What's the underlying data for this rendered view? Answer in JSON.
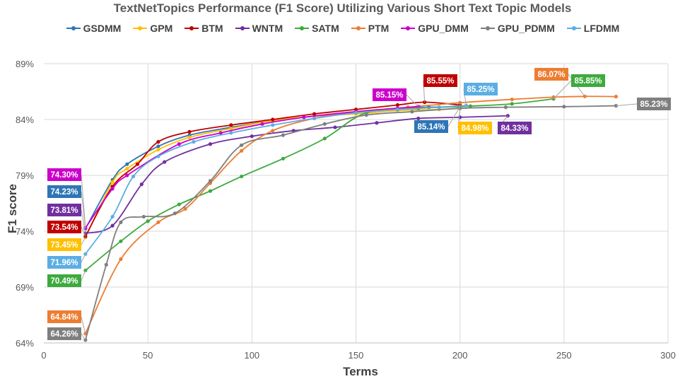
{
  "chart_data": {
    "type": "line",
    "title": "TextNetTopics Performance (F1 Score) Utilizing Various Short Text Topic Models",
    "xlabel": "Terms",
    "ylabel": "F1 score",
    "xlim": [
      0,
      300
    ],
    "ylim": [
      64,
      89
    ],
    "xticks": [
      0,
      50,
      100,
      150,
      200,
      250,
      300
    ],
    "yticks": [
      64,
      69,
      74,
      79,
      84,
      89
    ],
    "ytick_labels": [
      "64%",
      "69%",
      "74%",
      "79%",
      "84%",
      "89%"
    ],
    "grid": true,
    "legend_position": "top",
    "series": [
      {
        "name": "GSDMM",
        "color": "#2E75B6",
        "x": [
          20,
          33,
          40,
          55,
          70,
          90,
          110,
          130,
          150,
          170,
          185,
          200
        ],
        "y": [
          74.23,
          78.6,
          80.0,
          81.6,
          82.6,
          83.3,
          83.9,
          84.3,
          84.7,
          85.0,
          85.1,
          85.14
        ],
        "label": "74.23%",
        "end_label": "85.14%"
      },
      {
        "name": "GPM",
        "color": "#FFC000",
        "x": [
          20,
          33,
          40,
          55,
          70,
          90,
          110,
          130,
          150,
          170,
          190,
          200
        ],
        "y": [
          73.45,
          78.4,
          79.6,
          81.3,
          82.4,
          83.2,
          83.9,
          84.3,
          84.5,
          84.8,
          84.9,
          84.98
        ],
        "label": "73.45%",
        "end_label": "84.98%"
      },
      {
        "name": "BTM",
        "color": "#C00000",
        "x": [
          20,
          33,
          45,
          55,
          70,
          90,
          110,
          130,
          150,
          170,
          183,
          200
        ],
        "y": [
          73.54,
          78.0,
          80.0,
          82.0,
          82.9,
          83.5,
          84.0,
          84.5,
          84.9,
          85.3,
          85.55,
          85.3
        ],
        "label": "73.54%",
        "end_label": "85.55%"
      },
      {
        "name": "WNTM",
        "color": "#7030A0",
        "x": [
          20,
          33,
          47,
          58,
          80,
          100,
          120,
          140,
          160,
          180,
          200,
          223
        ],
        "y": [
          73.81,
          74.5,
          78.2,
          80.2,
          81.8,
          82.5,
          83.0,
          83.3,
          83.7,
          84.1,
          84.2,
          84.33
        ],
        "label": "73.81%",
        "end_label": "84.33%"
      },
      {
        "name": "SATM",
        "color": "#3DAA3D",
        "x": [
          20,
          37,
          50,
          65,
          80,
          95,
          115,
          135,
          155,
          180,
          205,
          225,
          245
        ],
        "y": [
          70.49,
          73.1,
          74.9,
          76.4,
          77.6,
          78.9,
          80.5,
          82.3,
          84.6,
          85.0,
          85.2,
          85.4,
          85.85
        ],
        "label": "70.49%",
        "end_label": "85.85%"
      },
      {
        "name": "PTM",
        "color": "#ED7D31",
        "x": [
          20,
          37,
          55,
          68,
          80,
          95,
          110,
          130,
          150,
          175,
          200,
          225,
          245,
          260,
          275
        ],
        "y": [
          64.84,
          71.5,
          74.8,
          76.0,
          78.3,
          81.2,
          83.0,
          84.1,
          84.7,
          85.1,
          85.5,
          85.8,
          86.0,
          86.07,
          86.05
        ],
        "label": "64.84%",
        "end_label": "86.07%"
      },
      {
        "name": "GPU_DMM",
        "color": "#CC00CC",
        "x": [
          20,
          33,
          40,
          65,
          85,
          105,
          125,
          150,
          170,
          180
        ],
        "y": [
          74.3,
          77.8,
          79.0,
          81.8,
          82.8,
          83.6,
          84.2,
          84.7,
          85.0,
          85.15
        ],
        "label": "74.30%",
        "end_label": "85.15%"
      },
      {
        "name": "GPU_PDMM",
        "color": "#7F7F7F",
        "x": [
          20,
          30,
          37,
          48,
          63,
          80,
          95,
          115,
          135,
          155,
          177,
          200,
          222,
          250,
          275
        ],
        "y": [
          64.26,
          71.0,
          74.8,
          75.3,
          75.6,
          78.5,
          81.7,
          82.6,
          83.6,
          84.4,
          84.7,
          85.0,
          85.1,
          85.15,
          85.23
        ],
        "label": "64.26%",
        "end_label": "85.23%"
      },
      {
        "name": "LFDMM",
        "color": "#5BAEE3",
        "x": [
          20,
          33,
          43,
          55,
          72,
          90,
          110,
          130,
          150,
          170,
          190,
          203
        ],
        "y": [
          71.96,
          75.3,
          78.9,
          80.7,
          82.0,
          82.8,
          83.5,
          84.1,
          84.6,
          84.9,
          85.1,
          85.25
        ],
        "label": "71.96%",
        "end_label": "85.25%"
      }
    ],
    "callouts_left": [
      {
        "series": "GPU_DMM",
        "text": "74.30%"
      },
      {
        "series": "GSDMM",
        "text": "74.23%"
      },
      {
        "series": "WNTM",
        "text": "73.81%"
      },
      {
        "series": "BTM",
        "text": "73.54%"
      },
      {
        "series": "GPM",
        "text": "73.45%"
      },
      {
        "series": "LFDMM",
        "text": "71.96%"
      },
      {
        "series": "SATM",
        "text": "70.49%"
      },
      {
        "series": "PTM",
        "text": "64.84%"
      },
      {
        "series": "GPU_PDMM",
        "text": "64.26%"
      }
    ],
    "callouts_right": [
      {
        "series": "GPU_DMM",
        "text": "85.15%"
      },
      {
        "series": "BTM",
        "text": "85.55%"
      },
      {
        "series": "LFDMM",
        "text": "85.25%"
      },
      {
        "series": "PTM",
        "text": "86.07%"
      },
      {
        "series": "SATM",
        "text": "85.85%"
      },
      {
        "series": "GSDMM",
        "text": "85.14%"
      },
      {
        "series": "GPM",
        "text": "84.98%"
      },
      {
        "series": "WNTM",
        "text": "84.33%"
      },
      {
        "series": "GPU_PDMM",
        "text": "85.23%"
      }
    ]
  }
}
